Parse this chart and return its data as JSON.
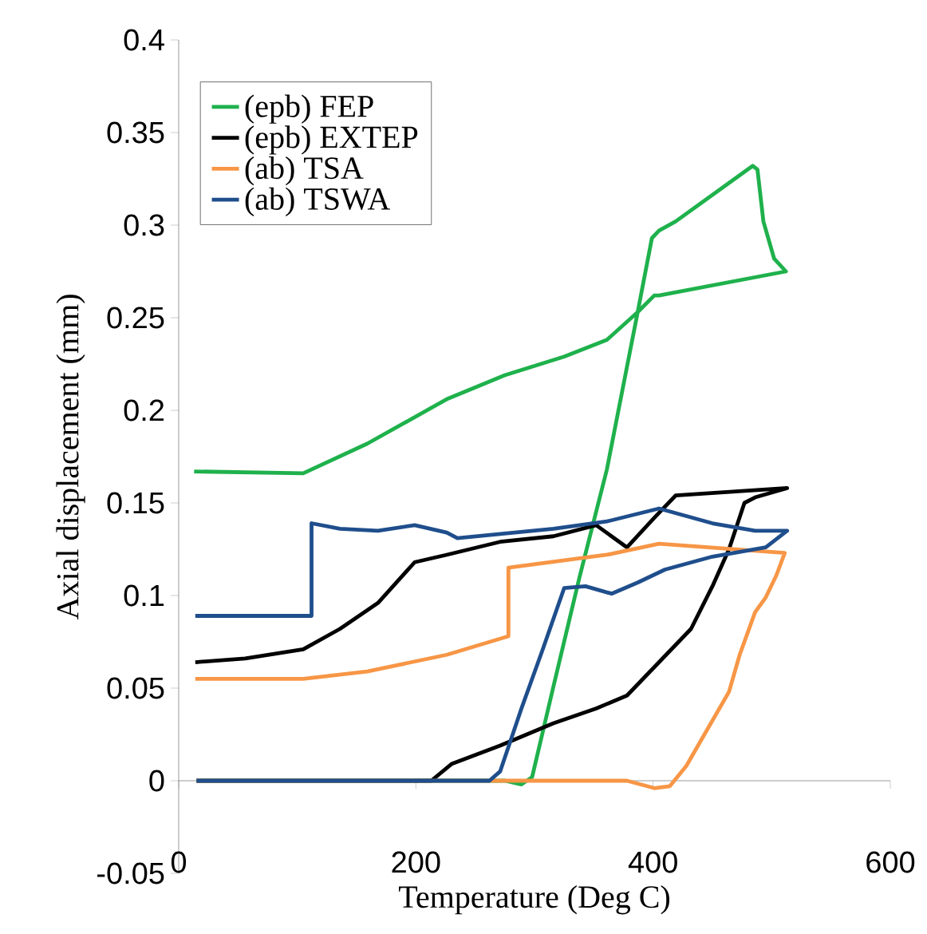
{
  "chart_data": {
    "type": "line",
    "xlabel": "Temperature (Deg C)",
    "ylabel": "Axial displacement (mm)",
    "xlim": [
      0,
      600
    ],
    "ylim": [
      -0.05,
      0.4
    ],
    "xticks": [
      0,
      200,
      400,
      600
    ],
    "yticks": [
      -0.05,
      0,
      0.05,
      0.1,
      0.15,
      0.2,
      0.25,
      0.3,
      0.35,
      0.4
    ],
    "legend": "top left",
    "grid": false,
    "marker": "none",
    "series": [
      {
        "name": "(epb) FEP",
        "color": "#1fb14c",
        "x": [
          15,
          275,
          289,
          298,
          316,
          338,
          361,
          387,
          399,
          405,
          419,
          484,
          488,
          493,
          502,
          512,
          405,
          401,
          387,
          361,
          325,
          275,
          226,
          159,
          105,
          13
        ],
        "values": [
          0,
          0,
          -0.002,
          0.002,
          0.051,
          0.11,
          0.168,
          0.253,
          0.293,
          0.297,
          0.302,
          0.332,
          0.33,
          0.302,
          0.282,
          0.275,
          0.262,
          0.262,
          0.253,
          0.238,
          0.229,
          0.219,
          0.206,
          0.182,
          0.166,
          0.167
        ]
      },
      {
        "name": "(epb) EXTEP",
        "color": "#000000",
        "x": [
          15,
          213,
          230,
          271,
          316,
          352,
          378,
          405,
          432,
          450,
          464,
          477,
          486,
          513,
          419,
          401,
          378,
          352,
          316,
          271,
          226,
          199,
          168,
          136,
          105,
          56,
          14
        ],
        "values": [
          0,
          0,
          0.009,
          0.019,
          0.031,
          0.039,
          0.046,
          0.064,
          0.082,
          0.105,
          0.125,
          0.15,
          0.153,
          0.158,
          0.154,
          0.142,
          0.126,
          0.138,
          0.132,
          0.129,
          0.122,
          0.118,
          0.096,
          0.082,
          0.071,
          0.066,
          0.064
        ]
      },
      {
        "name": "(ab) TSA",
        "color": "#f79646",
        "x": [
          15,
          378,
          401,
          414,
          428,
          446,
          464,
          473,
          486,
          495,
          504,
          511,
          405,
          361,
          278,
          278,
          226,
          159,
          105,
          14
        ],
        "values": [
          0,
          0,
          -0.004,
          -0.003,
          0.008,
          0.028,
          0.048,
          0.068,
          0.091,
          0.099,
          0.111,
          0.123,
          0.128,
          0.122,
          0.115,
          0.078,
          0.068,
          0.059,
          0.055,
          0.055
        ]
      },
      {
        "name": "(ab) TSWA",
        "color": "#1f4e8c",
        "x": [
          15,
          262,
          271,
          289,
          307,
          325,
          343,
          365,
          387,
          410,
          450,
          495,
          513,
          486,
          450,
          405,
          361,
          316,
          235,
          226,
          199,
          168,
          136,
          112,
          112,
          14
        ],
        "values": [
          0,
          0,
          0.005,
          0.039,
          0.071,
          0.104,
          0.105,
          0.101,
          0.107,
          0.114,
          0.121,
          0.126,
          0.135,
          0.135,
          0.139,
          0.147,
          0.14,
          0.136,
          0.131,
          0.134,
          0.138,
          0.135,
          0.136,
          0.139,
          0.089,
          0.089
        ]
      }
    ]
  }
}
